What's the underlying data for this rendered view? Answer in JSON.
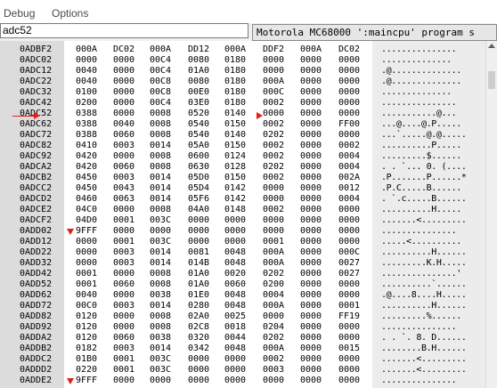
{
  "menu": {
    "debug": "Debug",
    "options": "Options"
  },
  "toolbar": {
    "address_value": "adc52",
    "cpu_select": "Motorola MC68000 ':maincpu' program s"
  },
  "rows": [
    {
      "addr": "0ADBF2",
      "words": [
        "000A",
        "DC02",
        "000A",
        "DD12",
        "000A",
        "DDF2",
        "000A",
        "DC02"
      ],
      "ascii": "..............."
    },
    {
      "addr": "0ADC02",
      "words": [
        "0000",
        "0000",
        "00C4",
        "0080",
        "0180",
        "0000",
        "0000",
        "0000"
      ],
      "ascii": ".............."
    },
    {
      "addr": "0ADC12",
      "words": [
        "0040",
        "0000",
        "00C4",
        "01A0",
        "0180",
        "0000",
        "0000",
        "0000"
      ],
      "ascii": ".@.............."
    },
    {
      "addr": "0ADC22",
      "words": [
        "0040",
        "0000",
        "00C8",
        "0080",
        "0180",
        "000A",
        "0000",
        "0000"
      ],
      "ascii": ".@.............."
    },
    {
      "addr": "0ADC32",
      "words": [
        "0100",
        "0000",
        "00C8",
        "00E0",
        "0180",
        "000C",
        "0000",
        "0000"
      ],
      "ascii": ".............."
    },
    {
      "addr": "0ADC42",
      "words": [
        "0200",
        "0000",
        "00C4",
        "03E0",
        "0180",
        "0002",
        "0000",
        "0000"
      ],
      "ascii": "..............."
    },
    {
      "addr": "0ADC52",
      "words": [
        "0388",
        "0000",
        "0008",
        "0520",
        "0140",
        "0000",
        "0000",
        "0000"
      ],
      "ascii": "...........@..."
    },
    {
      "addr": "0ADC62",
      "words": [
        "0388",
        "0040",
        "0008",
        "0540",
        "0150",
        "0002",
        "0000",
        "FF00"
      ],
      "ascii": "...@....@.P....."
    },
    {
      "addr": "0ADC72",
      "words": [
        "0388",
        "0060",
        "0008",
        "0540",
        "0140",
        "0202",
        "0000",
        "0000"
      ],
      "ascii": "...`.....@.@....."
    },
    {
      "addr": "0ADC82",
      "words": [
        "0410",
        "0003",
        "0014",
        "05A0",
        "0150",
        "0002",
        "0000",
        "0002"
      ],
      "ascii": "..........P....."
    },
    {
      "addr": "0ADC92",
      "words": [
        "0420",
        "0000",
        "0008",
        "0600",
        "0124",
        "0002",
        "0000",
        "0004"
      ],
      "ascii": ".........$......"
    },
    {
      "addr": "0ADCA2",
      "words": [
        "0420",
        "0060",
        "0008",
        "0630",
        "0128",
        "0202",
        "0000",
        "0004"
      ],
      "ascii": ". . `... 0. (...."
    },
    {
      "addr": "0ADCB2",
      "words": [
        "0450",
        "0003",
        "0014",
        "05D0",
        "0150",
        "0002",
        "0000",
        "002A"
      ],
      "ascii": ".P.......P......*"
    },
    {
      "addr": "0ADCC2",
      "words": [
        "0450",
        "0043",
        "0014",
        "05D4",
        "0142",
        "0000",
        "0000",
        "0012"
      ],
      "ascii": ".P.C.....B......"
    },
    {
      "addr": "0ADCD2",
      "words": [
        "0460",
        "0063",
        "0014",
        "05F6",
        "0142",
        "0000",
        "0000",
        "0004"
      ],
      "ascii": ". `.c.....B......"
    },
    {
      "addr": "0ADCE2",
      "words": [
        "04C0",
        "0000",
        "0008",
        "04A0",
        "0148",
        "0002",
        "0000",
        "0000"
      ],
      "ascii": "..........H....."
    },
    {
      "addr": "0ADCF2",
      "words": [
        "04D0",
        "0001",
        "003C",
        "0000",
        "0000",
        "0000",
        "0000",
        "0000"
      ],
      "ascii": ".......<........."
    },
    {
      "addr": "0ADD02",
      "words": [
        "9FFF",
        "0000",
        "0000",
        "0000",
        "0000",
        "0000",
        "0000",
        "0000"
      ],
      "ascii": "..............."
    },
    {
      "addr": "0ADD12",
      "words": [
        "0000",
        "0001",
        "003C",
        "0000",
        "0000",
        "0001",
        "0000",
        "0000"
      ],
      "ascii": ".....<.........."
    },
    {
      "addr": "0ADD22",
      "words": [
        "0000",
        "0003",
        "0014",
        "0081",
        "0048",
        "000A",
        "0000",
        "000C"
      ],
      "ascii": "..........H......"
    },
    {
      "addr": "0ADD32",
      "words": [
        "0000",
        "0003",
        "0014",
        "014B",
        "0048",
        "000A",
        "0000",
        "0027"
      ],
      "ascii": ".........K.H....."
    },
    {
      "addr": "0ADD42",
      "words": [
        "0001",
        "0000",
        "0008",
        "01A0",
        "0020",
        "0202",
        "0000",
        "0027"
      ],
      "ascii": "...............'"
    },
    {
      "addr": "0ADD52",
      "words": [
        "0001",
        "0060",
        "0008",
        "01A0",
        "0060",
        "0200",
        "0000",
        "0000"
      ],
      "ascii": "..........`......"
    },
    {
      "addr": "0ADD62",
      "words": [
        "0040",
        "0000",
        "0038",
        "01E0",
        "0048",
        "0004",
        "0000",
        "0000"
      ],
      "ascii": ".@....8....H....."
    },
    {
      "addr": "0ADD72",
      "words": [
        "00C0",
        "0003",
        "0014",
        "0280",
        "0048",
        "000A",
        "0000",
        "0001"
      ],
      "ascii": "..........H......"
    },
    {
      "addr": "0ADD82",
      "words": [
        "0120",
        "0000",
        "0008",
        "02A0",
        "0025",
        "0000",
        "0000",
        "FF19"
      ],
      "ascii": ".........%......"
    },
    {
      "addr": "0ADD92",
      "words": [
        "0120",
        "0000",
        "0008",
        "02C8",
        "0018",
        "0204",
        "0000",
        "0000"
      ],
      "ascii": "..............."
    },
    {
      "addr": "0ADDA2",
      "words": [
        "0120",
        "0060",
        "0038",
        "0320",
        "0044",
        "0202",
        "0000",
        "0000"
      ],
      "ascii": ". . `. 8. D......"
    },
    {
      "addr": "0ADDB2",
      "words": [
        "0182",
        "0003",
        "0014",
        "0342",
        "0048",
        "000A",
        "0000",
        "0015"
      ],
      "ascii": "........B.H......"
    },
    {
      "addr": "0ADDC2",
      "words": [
        "01B0",
        "0001",
        "003C",
        "0000",
        "0000",
        "0002",
        "0000",
        "0000"
      ],
      "ascii": ".......<........."
    },
    {
      "addr": "0ADDD2",
      "words": [
        "0220",
        "0001",
        "003C",
        "0000",
        "0000",
        "0003",
        "0000",
        "0000"
      ],
      "ascii": ".......<........."
    },
    {
      "addr": "0ADDE2",
      "words": [
        "9FFF",
        "0000",
        "0000",
        "0000",
        "0000",
        "0000",
        "0000",
        "0000"
      ],
      "ascii": "..............."
    }
  ],
  "colors": {
    "address_bg": "#dcdcdc",
    "data_bg": "#ffffff",
    "ascii_bg": "#ececec",
    "marker": "#e0201b"
  }
}
